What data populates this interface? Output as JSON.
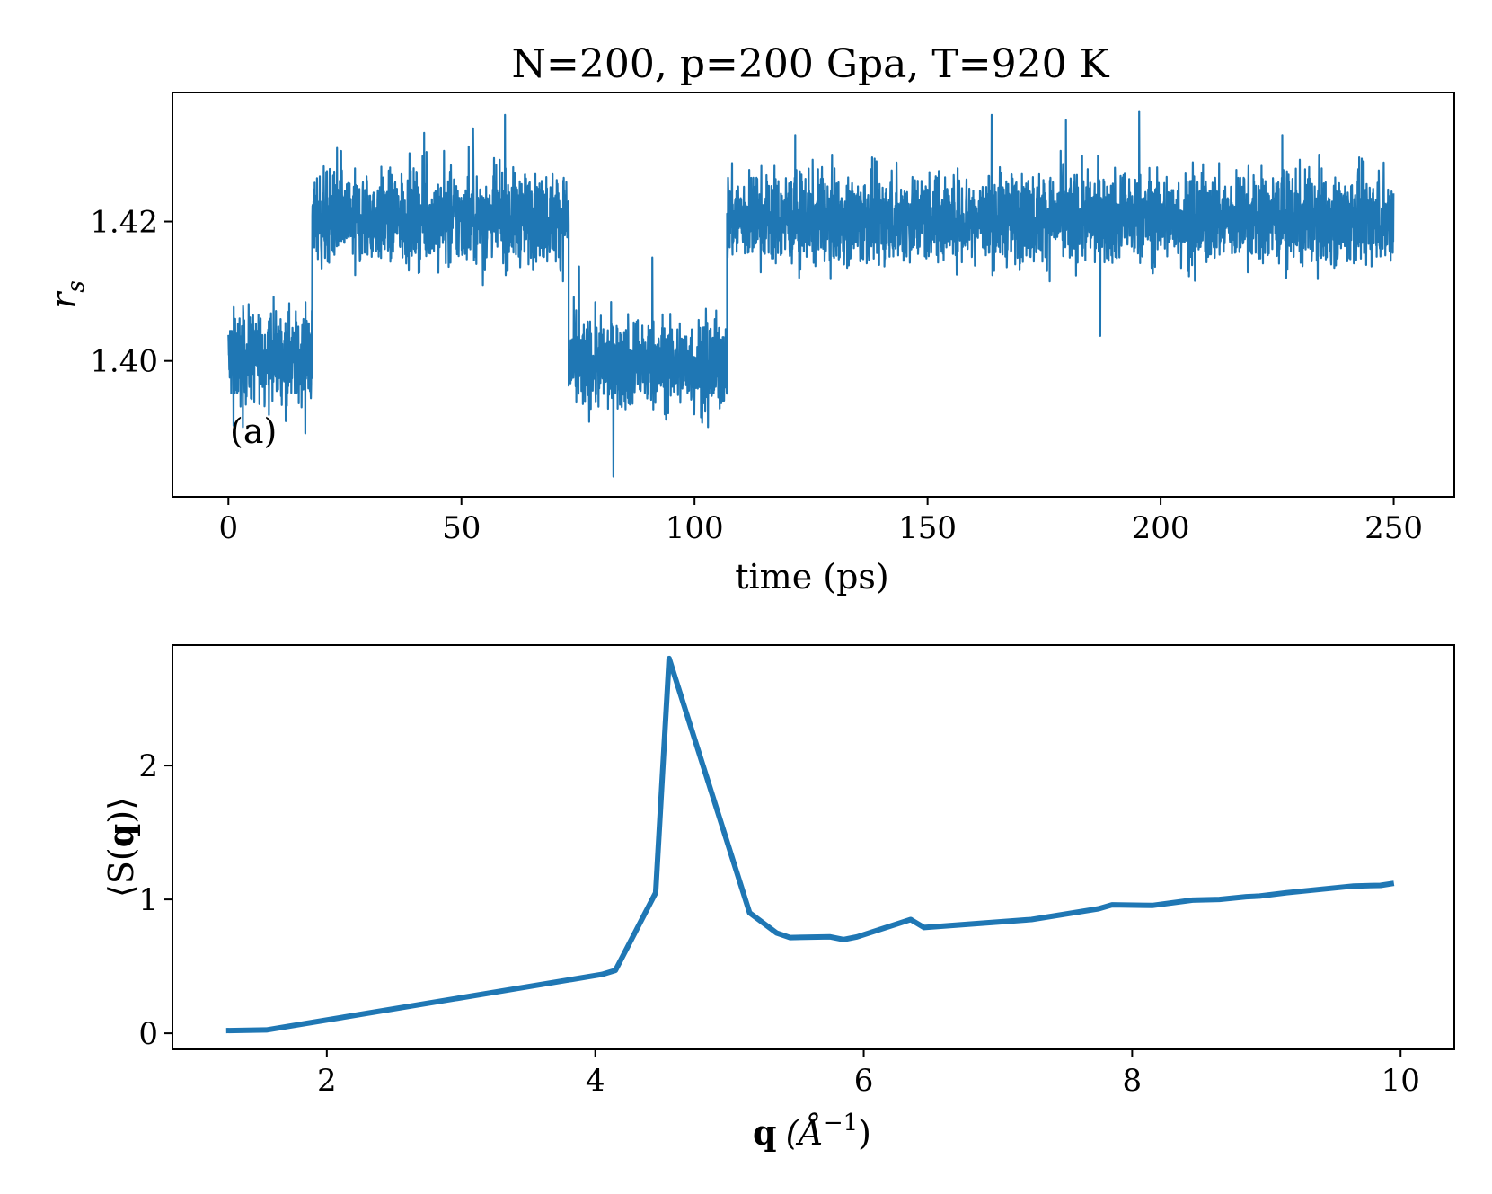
{
  "chart_data": [
    {
      "type": "line",
      "title": "N=200, p=200 Gpa, T=920 K",
      "xlabel": "time (ps)",
      "ylabel_symbol": "r",
      "ylabel_subscript": "s",
      "annotation": "(a)",
      "xlim": [
        -12,
        263
      ],
      "ylim": [
        1.3805,
        1.4385
      ],
      "xticks": [
        0,
        50,
        100,
        150,
        200,
        250
      ],
      "xtick_labels": [
        "0",
        "50",
        "100",
        "150",
        "200",
        "250"
      ],
      "yticks": [
        1.4,
        1.42
      ],
      "ytick_labels": [
        "1.40",
        "1.42"
      ],
      "color": "#1f77b4",
      "grid": false,
      "segments": [
        {
          "x_start": 0,
          "x_end": 18,
          "mean": 1.4005,
          "spread": 0.0035
        },
        {
          "x_start": 18,
          "x_end": 73,
          "mean": 1.4205,
          "spread": 0.0035
        },
        {
          "x_start": 73,
          "x_end": 107,
          "mean": 1.3995,
          "spread": 0.0035
        },
        {
          "x_start": 107,
          "x_end": 250,
          "mean": 1.4205,
          "spread": 0.0035
        }
      ],
      "range_observed": {
        "min": 1.3834,
        "max": 1.4362
      }
    },
    {
      "type": "line",
      "xlabel_symbol": "q",
      "xlabel_unit": "(Å",
      "xlabel_exponent": "−1",
      "xlabel_close": ")",
      "ylabel_open": "⟨S(",
      "ylabel_bold": "q",
      "ylabel_close": ")⟩",
      "xlim": [
        0.85,
        10.4
      ],
      "ylim": [
        -0.12,
        2.9
      ],
      "xticks": [
        2,
        4,
        6,
        8,
        10
      ],
      "xtick_labels": [
        "2",
        "4",
        "6",
        "8",
        "10"
      ],
      "yticks": [
        0,
        1,
        2
      ],
      "ytick_labels": [
        "0",
        "1",
        "2"
      ],
      "color": "#1f77b4",
      "grid": false,
      "x": [
        1.25,
        1.55,
        4.05,
        4.15,
        4.45,
        4.55,
        5.15,
        5.35,
        5.45,
        5.75,
        5.85,
        5.95,
        6.35,
        6.45,
        7.25,
        7.75,
        7.85,
        8.15,
        8.45,
        8.65,
        8.85,
        8.95,
        9.15,
        9.65,
        9.85,
        9.95
      ],
      "y": [
        0.02,
        0.025,
        0.44,
        0.47,
        1.05,
        2.8,
        0.9,
        0.75,
        0.715,
        0.72,
        0.7,
        0.72,
        0.85,
        0.79,
        0.85,
        0.93,
        0.96,
        0.955,
        0.995,
        1.0,
        1.02,
        1.025,
        1.05,
        1.1,
        1.105,
        1.12
      ]
    }
  ]
}
